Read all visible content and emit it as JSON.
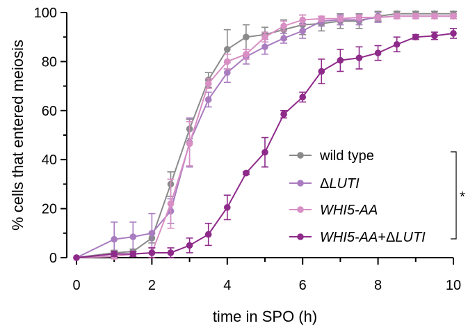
{
  "chart_data": {
    "type": "line",
    "xlabel": "time in SPO (h)",
    "ylabel": "% cells that entered meiosis",
    "xlim": [
      0,
      10
    ],
    "ylim": [
      0,
      100
    ],
    "xticks": [
      0,
      2,
      4,
      6,
      8,
      10
    ],
    "yticks": [
      0,
      20,
      40,
      60,
      80,
      100
    ],
    "legend_position": "center-right",
    "significance_marker": "*",
    "x": [
      0,
      1,
      1.5,
      2,
      2.5,
      3,
      3.5,
      4,
      4.5,
      5,
      5.5,
      6,
      6.5,
      7,
      7.5,
      8,
      8.5,
      9,
      9.5,
      10
    ],
    "series": [
      {
        "name": "wild type",
        "style": "normal",
        "color": "#8a8a8a",
        "values": [
          0,
          2,
          2.5,
          8,
          30,
          52.5,
          72.5,
          85,
          90,
          91,
          93,
          95,
          95.5,
          96.5,
          96.5,
          98.5,
          99.5,
          99.5,
          99.5,
          99.5
        ],
        "errors": [
          0,
          1,
          1,
          2,
          5,
          4,
          3,
          8,
          5,
          3,
          4,
          4,
          3,
          3,
          3,
          2,
          1,
          1,
          1,
          1
        ]
      },
      {
        "name": "LUTI",
        "prefix": "Δ",
        "style": "italic",
        "color": "#a97cc0",
        "values": [
          0,
          7.5,
          8.5,
          10,
          19,
          47,
          64.5,
          75.5,
          82,
          86,
          89.5,
          92.5,
          96.5,
          97,
          97,
          98,
          98.5,
          98.5,
          98.5,
          98.5
        ],
        "errors": [
          0,
          7,
          6,
          8,
          5,
          10,
          3,
          4,
          3,
          3,
          2,
          3,
          2,
          2,
          2,
          2,
          1,
          1,
          1,
          1
        ]
      },
      {
        "name": "WHI5-AA",
        "style": "italic",
        "color": "#d88fc4",
        "values": [
          0,
          0.5,
          1.5,
          2,
          22,
          46.5,
          71,
          80,
          83,
          90,
          94.5,
          97,
          97.5,
          97.5,
          98,
          98,
          98.5,
          98.5,
          98.5,
          98.5
        ],
        "errors": [
          0,
          1,
          1,
          2,
          10,
          9,
          2,
          3,
          2,
          2,
          2,
          2,
          1,
          1,
          1,
          1,
          1,
          1,
          1,
          1
        ]
      },
      {
        "name": "WHI5-AA+ΔLUTI",
        "style": "italic",
        "color": "#8e2a8a",
        "values": [
          0,
          1.5,
          1.5,
          2,
          2,
          5,
          9.5,
          20.5,
          34.5,
          43,
          58.5,
          65.5,
          76,
          80.5,
          81.5,
          83.5,
          87,
          90,
          90.5,
          91.5
        ],
        "errors": [
          0,
          1,
          1,
          2,
          2,
          3,
          4.5,
          5,
          0.5,
          6,
          1.5,
          2,
          5,
          4.5,
          4.5,
          3,
          3,
          1,
          1.5,
          2
        ]
      }
    ]
  }
}
